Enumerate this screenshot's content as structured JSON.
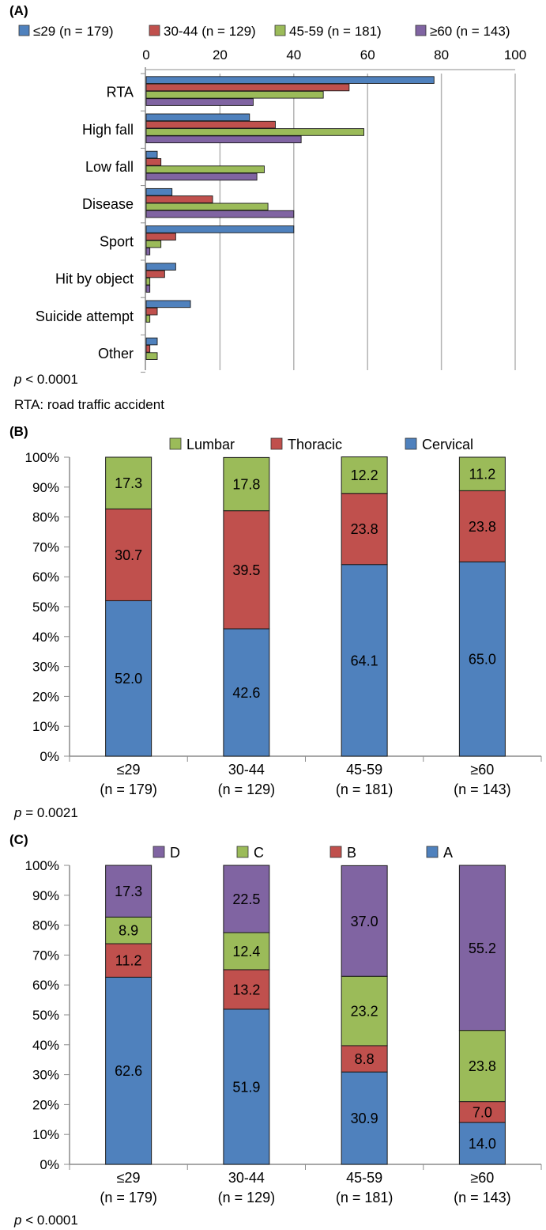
{
  "colors": {
    "blue": "#4f81bd",
    "red": "#c0504d",
    "green": "#9bbb59",
    "purple": "#8064a2",
    "grid": "#b3b3b3",
    "axis": "#8c8c8c"
  },
  "panels": {
    "a": {
      "tag": "(A)",
      "p_symbol": "p",
      "p_text": " < 0.0001",
      "footnote": "RTA: road traffic accident"
    },
    "b": {
      "tag": "(B)",
      "p_symbol": "p",
      "p_text": " = 0.0021"
    },
    "c": {
      "tag": "(C)",
      "p_symbol": "p",
      "p_text": " < 0.0001"
    }
  },
  "chart_data": [
    {
      "panel": "A",
      "type": "bar",
      "orientation": "horizontal",
      "categories": [
        "RTA",
        "High fall",
        "Low fall",
        "Disease",
        "Sport",
        "Hit by object",
        "Suicide attempt",
        "Other"
      ],
      "series": [
        {
          "name": "≤29 (n = 179)",
          "color": "#4f81bd",
          "values": [
            78,
            28,
            3,
            7,
            40,
            8,
            12,
            3
          ]
        },
        {
          "name": "30-44 (n = 129)",
          "color": "#c0504d",
          "values": [
            55,
            35,
            4,
            18,
            8,
            5,
            3,
            1
          ]
        },
        {
          "name": "45-59 (n = 181)",
          "color": "#9bbb59",
          "values": [
            48,
            59,
            32,
            33,
            4,
            1,
            1,
            3
          ]
        },
        {
          "name": "≥60 (n = 143)",
          "color": "#8064a2",
          "values": [
            29,
            42,
            30,
            40,
            1,
            1,
            0,
            0
          ]
        }
      ],
      "xlim": [
        0,
        100
      ],
      "xticks": [
        0,
        20,
        40,
        60,
        80,
        100
      ],
      "grid": true,
      "legend": "top"
    },
    {
      "panel": "B",
      "type": "bar",
      "stacked": true,
      "categories": [
        "≤29",
        "30-44",
        "45-59",
        "≥60"
      ],
      "category_sublabels": [
        "(n = 179)",
        "(n = 129)",
        "(n = 181)",
        "(n = 143)"
      ],
      "series": [
        {
          "name": "Cervical",
          "color": "#4f81bd",
          "values": [
            52.0,
            42.6,
            64.1,
            65.0
          ],
          "labels": [
            "52.0",
            "42.6",
            "64.1",
            "65.0"
          ]
        },
        {
          "name": "Thoracic",
          "color": "#c0504d",
          "values": [
            30.7,
            39.5,
            23.8,
            23.8
          ],
          "labels": [
            "30.7",
            "39.5",
            "23.8",
            "23.8"
          ]
        },
        {
          "name": "Lumbar",
          "color": "#9bbb59",
          "values": [
            17.3,
            17.8,
            12.2,
            11.2
          ],
          "labels": [
            "17.3",
            "17.8",
            "12.2",
            "11.2"
          ]
        }
      ],
      "legend_order": [
        "Lumbar",
        "Thoracic",
        "Cervical"
      ],
      "ylim": [
        0,
        100
      ],
      "yticks": [
        "0%",
        "10%",
        "20%",
        "30%",
        "40%",
        "50%",
        "60%",
        "70%",
        "80%",
        "90%",
        "100%"
      ],
      "grid": false,
      "legend": "top"
    },
    {
      "panel": "C",
      "type": "bar",
      "stacked": true,
      "categories": [
        "≤29",
        "30-44",
        "45-59",
        "≥60"
      ],
      "category_sublabels": [
        "(n = 179)",
        "(n = 129)",
        "(n = 181)",
        "(n = 143)"
      ],
      "series": [
        {
          "name": "A",
          "color": "#4f81bd",
          "values": [
            62.6,
            51.9,
            30.9,
            14.0
          ],
          "labels": [
            "62.6",
            "51.9",
            "30.9",
            "14.0"
          ]
        },
        {
          "name": "B",
          "color": "#c0504d",
          "values": [
            11.2,
            13.2,
            8.8,
            7.0
          ],
          "labels": [
            "11.2",
            "13.2",
            "8.8",
            "7.0"
          ]
        },
        {
          "name": "C",
          "color": "#9bbb59",
          "values": [
            8.9,
            12.4,
            23.2,
            23.8
          ],
          "labels": [
            "8.9",
            "12.4",
            "23.2",
            "23.8"
          ]
        },
        {
          "name": "D",
          "color": "#8064a2",
          "values": [
            17.3,
            22.5,
            37.0,
            55.2
          ],
          "labels": [
            "17.3",
            "22.5",
            "37.0",
            "55.2"
          ]
        }
      ],
      "legend_order": [
        "D",
        "C",
        "B",
        "A"
      ],
      "ylim": [
        0,
        100
      ],
      "yticks": [
        "0%",
        "10%",
        "20%",
        "30%",
        "40%",
        "50%",
        "60%",
        "70%",
        "80%",
        "90%",
        "100%"
      ],
      "grid": false,
      "legend": "top"
    }
  ]
}
